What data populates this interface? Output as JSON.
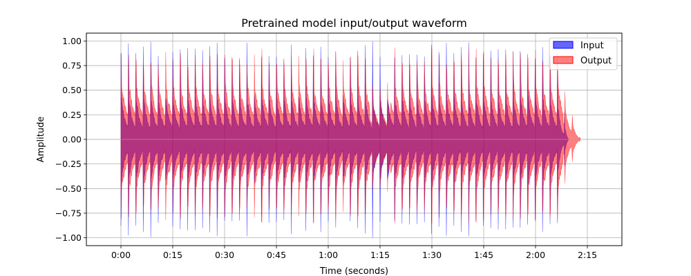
{
  "chart_data": {
    "type": "area",
    "title": "Pretrained model input/output waveform",
    "xlabel": "Time (seconds)",
    "ylabel": "Amplitude",
    "xlim": [
      -10,
      145
    ],
    "ylim": [
      -1.08,
      1.08
    ],
    "xticks": [
      0,
      15,
      30,
      45,
      60,
      75,
      90,
      105,
      120,
      135
    ],
    "xtick_labels": [
      "0:00",
      "0:15",
      "0:30",
      "0:45",
      "1:00",
      "1:15",
      "1:30",
      "1:45",
      "2:00",
      "2:15"
    ],
    "yticks": [
      -1.0,
      -0.75,
      -0.5,
      -0.25,
      0.0,
      0.25,
      0.5,
      0.75,
      1.0
    ],
    "ytick_labels": [
      "−1.00",
      "−0.75",
      "−0.50",
      "−0.25",
      "0.00",
      "0.25",
      "0.50",
      "0.75",
      "1.00"
    ],
    "grid": true,
    "legend_position": "top-right",
    "series": [
      {
        "name": "Input",
        "color": "#0000ff",
        "opacity": 0.6,
        "x_range": [
          0,
          129.5
        ],
        "beat_interval": 2.14,
        "peak_amplitude": 1.0,
        "sustain_amplitude": 0.45
      },
      {
        "name": "Output",
        "color": "#ff0000",
        "opacity": 0.5,
        "x_range": [
          0,
          133
        ],
        "beat_interval": 2.14,
        "peak_amplitude": 1.0,
        "sustain_amplitude": 0.55
      }
    ]
  }
}
